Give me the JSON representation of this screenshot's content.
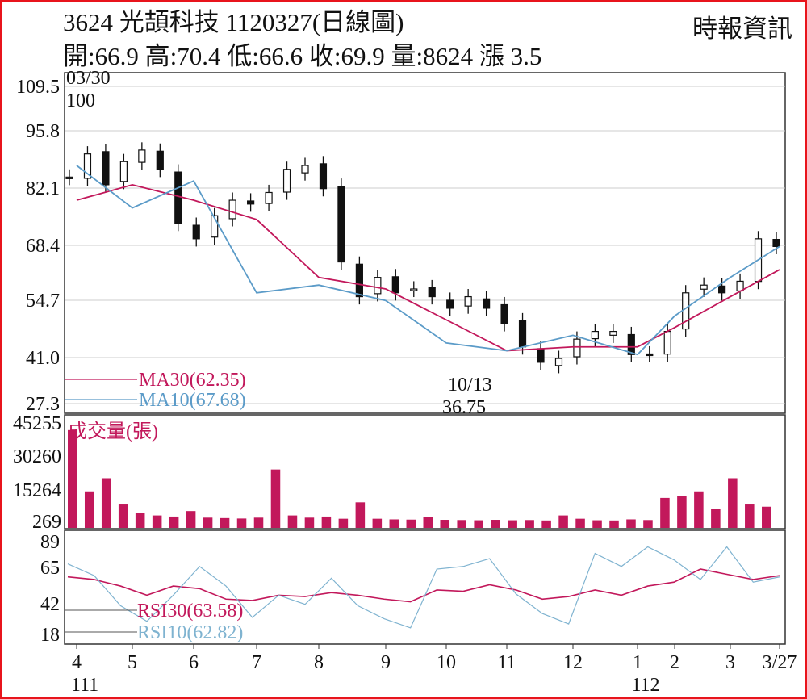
{
  "header": {
    "title": "3624  光頡科技 1120327(日線圖)",
    "source": "時報資訊",
    "stats": "開:66.9 高:70.4 低:66.6 收:69.9 量:8624 漲 3.5"
  },
  "colors": {
    "ma30": "#c2185b",
    "ma10": "#5b9bc8",
    "volume": "#c2185b",
    "rsi30": "#c2185b",
    "rsi10": "#7fb3d0",
    "candle": "#111111",
    "frame": "#e8141c"
  },
  "chart_data": [
    {
      "type": "candlestick",
      "panel": "price",
      "ylim": [
        27.3,
        109.5
      ],
      "yticks": [
        "109.5",
        "95.8",
        "82.1",
        "68.4",
        "54.7",
        "41.0",
        "27.3"
      ],
      "grid": true,
      "annotations": [
        {
          "label": "03/30",
          "value": "100"
        },
        {
          "label": "10/13",
          "value": "36.75"
        }
      ],
      "series": [
        {
          "name": "MA30(62.35)",
          "x": [
            "4",
            "5",
            "6",
            "7",
            "8",
            "9",
            "10",
            "11",
            "12",
            "1",
            "2",
            "3",
            "3/27"
          ],
          "values": [
            80,
            84,
            80,
            75,
            60,
            57,
            49,
            41,
            42,
            42,
            47,
            55,
            62
          ]
        },
        {
          "name": "MA10(67.68)",
          "x": [
            "4",
            "5",
            "6",
            "7",
            "8",
            "9",
            "10",
            "11",
            "12",
            "1",
            "2",
            "3",
            "3/27"
          ],
          "values": [
            89,
            78,
            85,
            56,
            58,
            54,
            43,
            41,
            45,
            40,
            50,
            60,
            68
          ]
        }
      ],
      "close": [
        86,
        92,
        84,
        90,
        93,
        88,
        74,
        70,
        76,
        80,
        79,
        82,
        88,
        89,
        83,
        64,
        55,
        60,
        56,
        57,
        55,
        52,
        55,
        52,
        48,
        42,
        38,
        39,
        44,
        46,
        46,
        40,
        40,
        46,
        56,
        58,
        56,
        59,
        70,
        68
      ]
    },
    {
      "type": "bar",
      "panel": "volume",
      "title": "成交量(張)",
      "yticks": [
        "45255",
        "30260",
        "15264",
        "269"
      ],
      "ylim": [
        269,
        45255
      ],
      "values": [
        42000,
        14000,
        20000,
        8000,
        4000,
        3000,
        2500,
        5000,
        2000,
        1800,
        1600,
        2000,
        24000,
        3000,
        2000,
        2500,
        1500,
        9000,
        1500,
        1200,
        1100,
        2200,
        1000,
        900,
        800,
        1000,
        800,
        900,
        700,
        3000,
        1500,
        800,
        700,
        1200,
        900,
        11000,
        12000,
        14000,
        6000,
        20000,
        8000,
        7000
      ]
    },
    {
      "type": "line",
      "panel": "rsi",
      "yticks": [
        "89",
        "65",
        "42",
        "18"
      ],
      "ylim": [
        18,
        89
      ],
      "series": [
        {
          "name": "RSI30(63.58)",
          "values": [
            62,
            60,
            55,
            48,
            55,
            53,
            45,
            44,
            48,
            47,
            50,
            48,
            45,
            43,
            52,
            51,
            56,
            52,
            45,
            47,
            52,
            48,
            55,
            58,
            68,
            64,
            60,
            63
          ]
        },
        {
          "name": "RSI10(62.82)",
          "values": [
            72,
            63,
            40,
            28,
            48,
            70,
            55,
            31,
            48,
            41,
            61,
            40,
            30,
            23,
            68,
            70,
            76,
            49,
            34,
            26,
            80,
            70,
            85,
            75,
            60,
            85,
            58,
            62
          ]
        }
      ]
    }
  ],
  "xaxis": {
    "ticks": [
      "4",
      "5",
      "6",
      "7",
      "8",
      "9",
      "10",
      "11",
      "12",
      "1",
      "2",
      "3",
      "3/27"
    ],
    "years": [
      {
        "tick": "4",
        "label": "111"
      },
      {
        "tick": "1",
        "label": "112"
      }
    ]
  }
}
